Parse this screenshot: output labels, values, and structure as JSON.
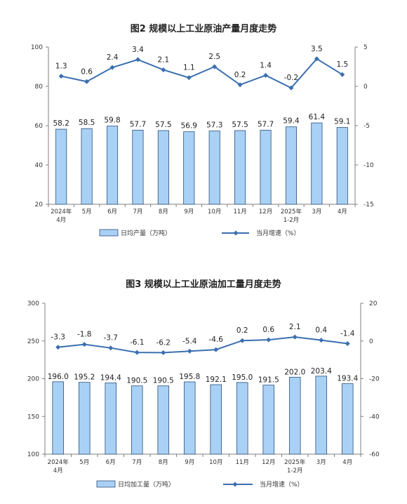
{
  "colors": {
    "bar_fill": "#a9d1f5",
    "bar_stroke": "#2b4f7a",
    "line": "#3a6fb0",
    "axis": "#7f7f7f"
  },
  "chart_data": [
    {
      "type": "bar",
      "title": "图2  规模以上工业原油产量月度走势",
      "categories": [
        [
          "2024年",
          "4月"
        ],
        [
          "5月"
        ],
        [
          "6月"
        ],
        [
          "7月"
        ],
        [
          "8月"
        ],
        [
          "9月"
        ],
        [
          "10月"
        ],
        [
          "11月"
        ],
        [
          "12月"
        ],
        [
          "2025年",
          "1-2月"
        ],
        [
          "3月"
        ],
        [
          "4月"
        ]
      ],
      "series": [
        {
          "name": "日均产量（万吨）",
          "type": "bar",
          "axis": "left",
          "values": [
            58.2,
            58.5,
            59.8,
            57.7,
            57.5,
            56.9,
            57.3,
            57.5,
            57.7,
            59.4,
            61.4,
            59.1
          ],
          "labels": [
            "58.2",
            "58.5",
            "59.8",
            "57.7",
            "57.5",
            "56.9",
            "57.3",
            "57.5",
            "57.7",
            "59.4",
            "61.4",
            "59.1"
          ]
        },
        {
          "name": "当月增速（%）",
          "type": "line",
          "axis": "right",
          "values": [
            1.3,
            0.6,
            2.4,
            3.4,
            2.1,
            1.1,
            2.5,
            0.2,
            1.4,
            -0.2,
            3.5,
            1.5
          ],
          "labels": [
            "1.3",
            "0.6",
            "2.4",
            "3.4",
            "2.1",
            "1.1",
            "2.5",
            "0.2",
            "1.4",
            "-0.2",
            "3.5",
            "1.5"
          ]
        }
      ],
      "ylim_left": [
        20,
        100
      ],
      "yticks_left": [
        "20",
        "40",
        "60",
        "80",
        "100"
      ],
      "ylim_right": [
        -15,
        5
      ],
      "yticks_right": [
        "-15",
        "-10",
        "-5",
        "0",
        "5"
      ],
      "grid": false,
      "legend": "bottom"
    },
    {
      "type": "bar",
      "title": "图3  规模以上工业原油加工量月度走势",
      "categories": [
        [
          "2024年",
          "4月"
        ],
        [
          "5月"
        ],
        [
          "6月"
        ],
        [
          "7月"
        ],
        [
          "8月"
        ],
        [
          "9月"
        ],
        [
          "10月"
        ],
        [
          "11月"
        ],
        [
          "12月"
        ],
        [
          "2025年",
          "1-2月"
        ],
        [
          "3月"
        ],
        [
          "4月"
        ]
      ],
      "series": [
        {
          "name": "日均加工量（万吨）",
          "type": "bar",
          "axis": "left",
          "values": [
            196.0,
            195.2,
            194.4,
            190.5,
            190.5,
            195.8,
            192.1,
            195.0,
            191.5,
            202.0,
            203.4,
            193.4
          ],
          "labels": [
            "196.0",
            "195.2",
            "194.4",
            "190.5",
            "190.5",
            "195.8",
            "192.1",
            "195.0",
            "191.5",
            "202.0",
            "203.4",
            "193.4"
          ]
        },
        {
          "name": "当月增速（%）",
          "type": "line",
          "axis": "right",
          "values": [
            -3.3,
            -1.8,
            -3.7,
            -6.1,
            -6.2,
            -5.4,
            -4.6,
            0.2,
            0.6,
            2.1,
            0.4,
            -1.4
          ],
          "labels": [
            "-3.3",
            "-1.8",
            "-3.7",
            "-6.1",
            "-6.2",
            "-5.4",
            "-4.6",
            "0.2",
            "0.6",
            "2.1",
            "0.4",
            "-1.4"
          ]
        }
      ],
      "ylim_left": [
        100,
        300
      ],
      "yticks_left": [
        "100",
        "150",
        "200",
        "250",
        "300"
      ],
      "ylim_right": [
        -60,
        20
      ],
      "yticks_right": [
        "-60",
        "-40",
        "-20",
        "0",
        "20"
      ],
      "grid": false,
      "legend": "bottom"
    }
  ]
}
